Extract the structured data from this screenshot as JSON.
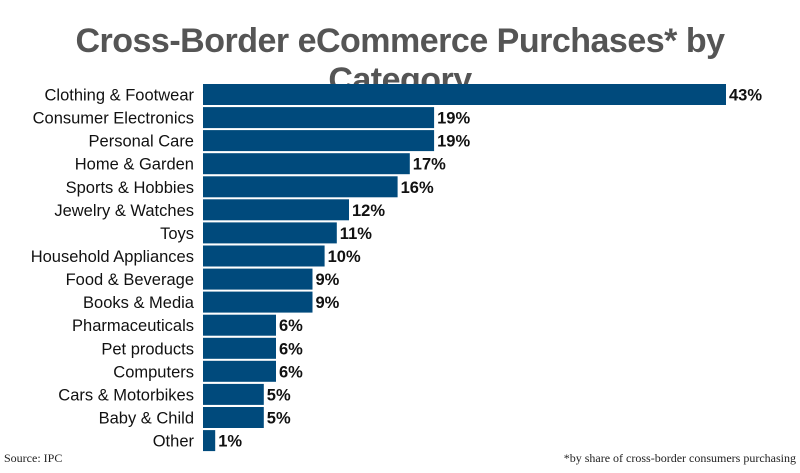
{
  "chart_data": {
    "type": "bar",
    "orientation": "horizontal",
    "title": "Cross-Border eCommerce Purchases* by Category",
    "categories": [
      "Clothing & Footwear",
      "Consumer Electronics",
      "Personal Care",
      "Home & Garden",
      "Sports & Hobbies",
      "Jewelry & Watches",
      "Toys",
      "Household Appliances",
      "Food & Beverage",
      "Books & Media",
      "Pharmaceuticals",
      "Pet products",
      "Computers",
      "Cars & Motorbikes",
      "Baby & Child",
      "Other"
    ],
    "values": [
      43,
      19,
      19,
      17,
      16,
      12,
      11,
      10,
      9,
      9,
      6,
      6,
      6,
      5,
      5,
      1
    ],
    "value_labels": [
      "43%",
      "19%",
      "19%",
      "17%",
      "16%",
      "12%",
      "11%",
      "10%",
      "9%",
      "9%",
      "6%",
      "6%",
      "6%",
      "5%",
      "5%",
      "1%"
    ],
    "xlim": [
      0,
      43
    ],
    "bar_color": "#004a7c",
    "grid": false,
    "legend": "none"
  },
  "footer": {
    "source": "Source: IPC",
    "note": "*by share of cross-border consumers purchasing"
  }
}
